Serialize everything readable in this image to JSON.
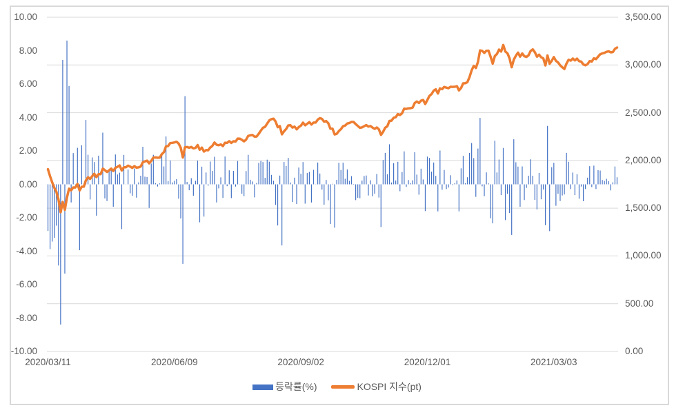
{
  "legend": {
    "series1_label": "등락률(%)",
    "series2_label": "KOSPI 지수(pt)"
  },
  "colors": {
    "bar": "#4472C4",
    "line": "#ED7D31",
    "grid": "#D9D9D9",
    "axis_text": "#595959",
    "frame_border": "#D9D9D9",
    "background": "#FFFFFF"
  },
  "chart_data": {
    "type": "combo",
    "title": "",
    "grid": "horizontal only, at right-axis major units",
    "legend_position": "bottom",
    "left_axis": {
      "label": "등락률(%)",
      "min": -10,
      "max": 10,
      "step": 2,
      "tick_labels": [
        "10.00",
        "8.00",
        "6.00",
        "4.00",
        "2.00",
        "0.00",
        "-2.00",
        "-4.00",
        "-6.00",
        "-8.00",
        "-10.00"
      ]
    },
    "right_axis": {
      "label": "KOSPI 지수(pt)",
      "min": 0,
      "max": 3500,
      "step": 500,
      "tick_labels": [
        "3,500.00",
        "3,000.00",
        "2,500.00",
        "2,000.00",
        "1,500.00",
        "1,000.00",
        "500.00",
        "0.00"
      ]
    },
    "x_axis": {
      "unit": "trading day index (daily data, 2020/03/11 through approx. 2021/04/14)",
      "tick_indices": [
        0,
        60,
        120,
        180,
        240
      ],
      "tick_labels": [
        "2020/03/11",
        "2020/06/09",
        "2020/09/02",
        "2020/12/01",
        "2021/03/03"
      ]
    },
    "series": [
      {
        "name": "등락률(%)",
        "type": "bar",
        "axis": "left",
        "color": "#4472C4",
        "derivation": "daily percent change: change[i] = (kospi[i]/kospi[i-1] - 1) * 100, with kospi[-1] = prev_close"
      },
      {
        "name": "KOSPI 지수(pt)",
        "type": "line",
        "axis": "right",
        "color": "#ED7D31"
      }
    ],
    "prev_close": 1962.93,
    "kospi": [
      1908.27,
      1834.33,
      1771.44,
      1714.86,
      1672.44,
      1591.2,
      1457.64,
      1566.15,
      1482.46,
      1609.97,
      1704.76,
      1686.24,
      1717.73,
      1717.12,
      1754.64,
      1685.46,
      1724.86,
      1725.44,
      1791.88,
      1823.6,
      1807.14,
      1836.21,
      1860.7,
      1825.76,
      1857.08,
      1857.07,
      1914.53,
      1898.36,
      1879.38,
      1896.15,
      1914.73,
      1889.01,
      1922.77,
      1934.09,
      1947.56,
      1895.37,
      1928.76,
      1928.61,
      1945.82,
      1935.4,
      1922.17,
      1940.42,
      1924.96,
      1927.28,
      1937.11,
      1980.61,
      1989.64,
      1998.31,
      1970.13,
      1994.6,
      2029.78,
      2031.2,
      2028.54,
      2029.6,
      2065.08,
      2087.19,
      2147.0,
      2151.18,
      2181.87,
      2184.29,
      2188.92,
      2195.69,
      2176.78,
      2132.3,
      2030.82,
      2138.05,
      2141.05,
      2133.48,
      2141.32,
      2126.73,
      2131.24,
      2161.51,
      2112.37,
      2134.65,
      2093.48,
      2108.33,
      2106.7,
      2135.37,
      2152.41,
      2187.93,
      2164.17,
      2158.88,
      2167.9,
      2150.25,
      2186.06,
      2183.61,
      2201.88,
      2183.76,
      2201.19,
      2198.2,
      2228.83,
      2228.66,
      2216.19,
      2200.44,
      2217.86,
      2256.99,
      2263.16,
      2267.01,
      2249.37,
      2251.04,
      2279.97,
      2311.86,
      2342.61,
      2351.67,
      2386.38,
      2418.67,
      2432.35,
      2437.53,
      2407.49,
      2348.24,
      2360.54,
      2274.22,
      2304.59,
      2329.83,
      2366.73,
      2369.32,
      2344.45,
      2353.8,
      2326.17,
      2349.55,
      2364.37,
      2395.9,
      2368.25,
      2384.22,
      2401.91,
      2375.81,
      2396.48,
      2396.69,
      2427.91,
      2443.58,
      2435.92,
      2406.17,
      2412.4,
      2389.39,
      2332.59,
      2333.24,
      2272.7,
      2278.79,
      2308.08,
      2327.89,
      2358.0,
      2365.9,
      2386.94,
      2391.96,
      2403.73,
      2403.15,
      2380.48,
      2361.21,
      2341.53,
      2346.74,
      2358.41,
      2370.86,
      2355.05,
      2360.81,
      2343.91,
      2330.84,
      2345.26,
      2326.67,
      2267.15,
      2300.16,
      2343.31,
      2357.32,
      2413.79,
      2416.5,
      2447.2,
      2452.83,
      2485.87,
      2475.62,
      2493.87,
      2543.03,
      2539.15,
      2545.64,
      2547.42,
      2553.5,
      2602.59,
      2617.76,
      2601.54,
      2625.91,
      2633.45,
      2591.34,
      2634.25,
      2675.9,
      2696.22,
      2731.45,
      2745.44,
      2700.93,
      2755.47,
      2746.46,
      2770.06,
      2762.2,
      2756.82,
      2771.79,
      2770.43,
      2772.18,
      2778.65,
      2733.68,
      2759.82,
      2806.86,
      2808.6,
      2820.51,
      2873.47,
      2944.45,
      2990.57,
      2968.21,
      3031.68,
      3152.18,
      3148.45,
      3125.95,
      3148.29,
      3149.93,
      3085.9,
      3013.93,
      3092.66,
      3114.55,
      3160.84,
      3140.63,
      3208.99,
      3140.31,
      3122.56,
      3069.05,
      2976.21,
      3056.53,
      3096.81,
      3129.68,
      3087.55,
      3120.63,
      3091.24,
      3084.67,
      3100.58,
      3147.0,
      3163.25,
      3133.73,
      3086.66,
      3107.62,
      3079.75,
      3070.09,
      2994.98,
      3099.69,
      3012.95,
      3043.87,
      3082.99,
      3043.49,
      3026.26,
      2996.11,
      2976.12,
      2958.12,
      3013.7,
      3054.39,
      3045.71,
      3067.17,
      3047.5,
      3066.01,
      3039.53,
      3035.46,
      3004.74,
      2996.35,
      3008.33,
      3041.01,
      3036.04,
      3070.0,
      3061.42,
      3087.4,
      3112.8,
      3120.83,
      3127.08,
      3137.41,
      3143.26,
      3131.88,
      3135.59,
      3169.08,
      3182.38
    ]
  }
}
